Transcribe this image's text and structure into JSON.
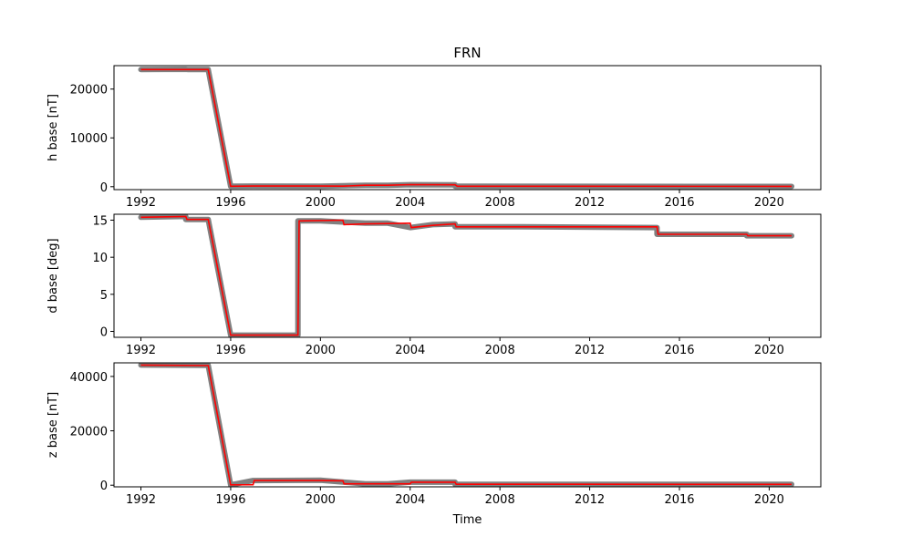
{
  "title": "FRN",
  "colors": {
    "scatter": "#808080",
    "line": "#ff0000",
    "axes": "#000000"
  },
  "chart_data": [
    {
      "type": "line",
      "ylabel": "h base [nT]",
      "xlabel": "",
      "xlim": [
        1990.8,
        2022.3
      ],
      "ylim": [
        -600,
        24800
      ],
      "xticks": [
        1992,
        1996,
        2000,
        2004,
        2008,
        2012,
        2016,
        2020
      ],
      "yticks": [
        0,
        10000,
        20000
      ],
      "scatter": [
        [
          1992,
          24000
        ],
        [
          1994,
          24050
        ],
        [
          1994.1,
          24000
        ],
        [
          1995,
          24000
        ],
        [
          1996,
          90
        ],
        [
          1997,
          120
        ],
        [
          2000,
          110
        ],
        [
          2002,
          300
        ],
        [
          2003,
          280
        ],
        [
          2004,
          400
        ],
        [
          2006,
          380
        ],
        [
          2006,
          90
        ],
        [
          2021,
          60
        ]
      ],
      "line": [
        [
          1992,
          24000
        ],
        [
          1995,
          24000
        ],
        [
          1996,
          100
        ],
        [
          1997,
          130
        ],
        [
          2000,
          120
        ],
        [
          2001,
          110
        ],
        [
          2002,
          300
        ],
        [
          2003,
          290
        ],
        [
          2004,
          420
        ],
        [
          2006,
          390
        ],
        [
          2006.1,
          100
        ],
        [
          2021,
          70
        ]
      ]
    },
    {
      "type": "line",
      "ylabel": "d base [deg]",
      "xlabel": "",
      "xlim": [
        1990.8,
        2022.3
      ],
      "ylim": [
        -0.8,
        15.8
      ],
      "xticks": [
        1992,
        1996,
        2000,
        2004,
        2008,
        2012,
        2016,
        2020
      ],
      "yticks": [
        0,
        5,
        10,
        15
      ],
      "scatter": [
        [
          1992,
          15.4
        ],
        [
          1994,
          15.5
        ],
        [
          1994,
          15.1
        ],
        [
          1995,
          15.1
        ],
        [
          1996,
          -0.5
        ],
        [
          1999,
          -0.5
        ],
        [
          1999,
          14.9
        ],
        [
          2000,
          14.9
        ],
        [
          2002,
          14.6
        ],
        [
          2003,
          14.6
        ],
        [
          2004,
          14.0
        ],
        [
          2005,
          14.4
        ],
        [
          2006,
          14.5
        ],
        [
          2006,
          14.1
        ],
        [
          2009,
          14.1
        ],
        [
          2015,
          14.0
        ],
        [
          2015,
          13.1
        ],
        [
          2019,
          13.1
        ],
        [
          2019,
          12.9
        ],
        [
          2021,
          12.9
        ]
      ],
      "line": [
        [
          1992,
          15.4
        ],
        [
          1994,
          15.5
        ],
        [
          1994.05,
          15.1
        ],
        [
          1995,
          15.1
        ],
        [
          1996,
          -0.5
        ],
        [
          1999,
          -0.5
        ],
        [
          1999.05,
          14.9
        ],
        [
          2001,
          15.0
        ],
        [
          2001.05,
          14.4
        ],
        [
          2002,
          14.5
        ],
        [
          2004,
          14.6
        ],
        [
          2004.05,
          14.0
        ],
        [
          2005,
          14.3
        ],
        [
          2006,
          14.5
        ],
        [
          2006.05,
          14.1
        ],
        [
          2009,
          14.1
        ],
        [
          2015,
          14.1
        ],
        [
          2015.05,
          13.1
        ],
        [
          2019,
          13.1
        ],
        [
          2019.05,
          12.9
        ],
        [
          2021,
          12.9
        ]
      ]
    },
    {
      "type": "line",
      "ylabel": "z base [nT]",
      "xlabel": "Time",
      "xlim": [
        1990.8,
        2022.3
      ],
      "ylim": [
        -600,
        45000
      ],
      "xticks": [
        1992,
        1996,
        2000,
        2004,
        2008,
        2012,
        2016,
        2020
      ],
      "yticks": [
        0,
        20000,
        40000
      ],
      "scatter": [
        [
          1992,
          44200
        ],
        [
          1995,
          44100
        ],
        [
          1996,
          100
        ],
        [
          1997,
          1700
        ],
        [
          2000,
          1800
        ],
        [
          2002,
          500
        ],
        [
          2003,
          500
        ],
        [
          2004,
          1100
        ],
        [
          2006,
          1100
        ],
        [
          2006,
          350
        ],
        [
          2021,
          300
        ]
      ],
      "line": [
        [
          1992,
          44200
        ],
        [
          1995,
          44000
        ],
        [
          1996,
          150
        ],
        [
          1997,
          180
        ],
        [
          1997.05,
          1700
        ],
        [
          2000,
          1700
        ],
        [
          2001,
          1600
        ],
        [
          2001.05,
          500
        ],
        [
          2004,
          500
        ],
        [
          2004.05,
          1100
        ],
        [
          2006,
          1100
        ],
        [
          2006.05,
          350
        ],
        [
          2021,
          300
        ]
      ]
    }
  ]
}
